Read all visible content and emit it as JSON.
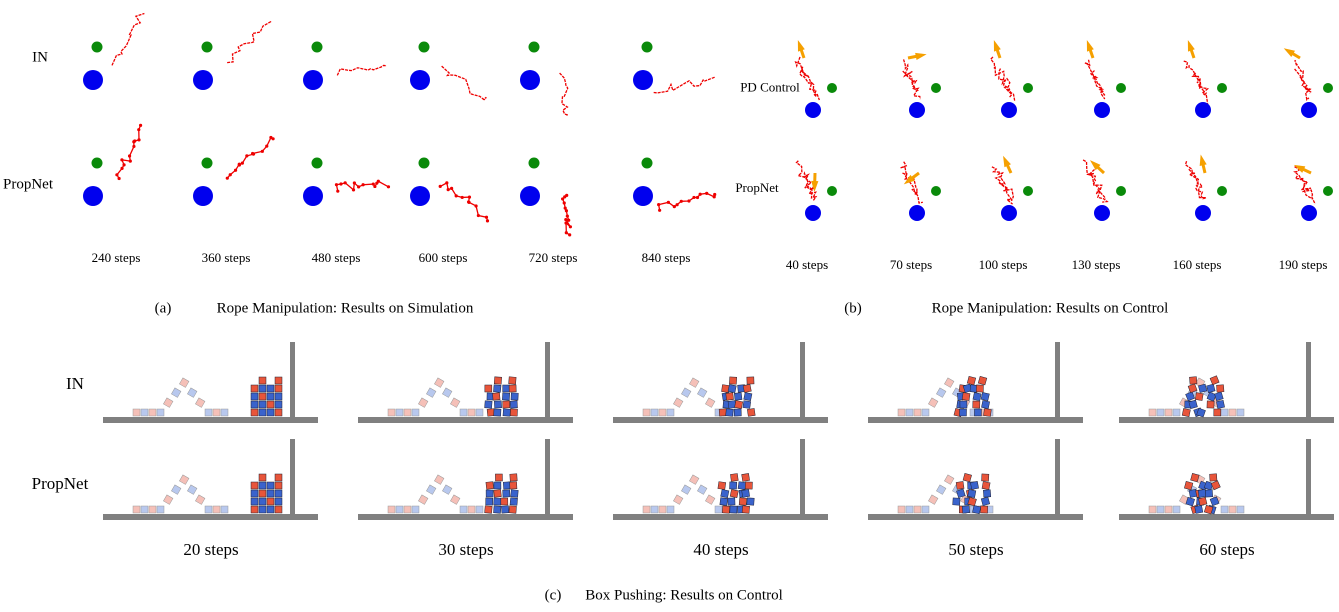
{
  "panel_a": {
    "row_labels": [
      "IN",
      "PropNet"
    ],
    "steps": [
      "240 steps",
      "360 steps",
      "480 steps",
      "600 steps",
      "720 steps",
      "840 steps"
    ],
    "caption_label": "(a)",
    "caption": "Rope Manipulation: Results on Simulation"
  },
  "panel_b": {
    "row_labels": [
      "PD Control",
      "PropNet"
    ],
    "steps": [
      "40 steps",
      "70 steps",
      "100 steps",
      "130 steps",
      "160 steps",
      "190 steps"
    ],
    "caption_label": "(b)",
    "caption": "Rope Manipulation: Results on Control"
  },
  "panel_c": {
    "row_labels": [
      "IN",
      "PropNet"
    ],
    "steps": [
      "20 steps",
      "30 steps",
      "40 steps",
      "50 steps",
      "60 steps"
    ],
    "caption_label": "(c)",
    "caption": "Box Pushing: Results on Control"
  }
}
